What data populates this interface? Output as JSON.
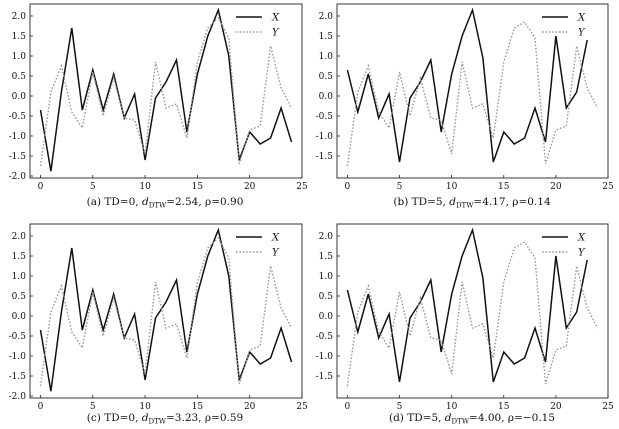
{
  "figure": {
    "panels": [
      {
        "caption_pre": "(a) TD=0, ",
        "caption_d": "d",
        "caption_sub": "DTW",
        "caption_post": "=2.54, ρ=0.90"
      },
      {
        "caption_pre": "(b) TD=5, ",
        "caption_d": "d",
        "caption_sub": "DTW",
        "caption_post": "=4.17, ρ=0.14"
      },
      {
        "caption_pre": "(c) TD=0, ",
        "caption_d": "d",
        "caption_sub": "DTW",
        "caption_post": "=3.23, ρ=0.59"
      },
      {
        "caption_pre": "(d) TD=5, ",
        "caption_d": "d",
        "caption_sub": "DTW",
        "caption_post": "=4.00, ρ=−0.15"
      }
    ]
  },
  "chart_data": [
    {
      "type": "line",
      "title": "",
      "xlabel": "",
      "ylabel": "",
      "xlim": [
        -1,
        25
      ],
      "ylim": [
        -2.05,
        2.3
      ],
      "xticks": [
        "0",
        "5",
        "10",
        "15",
        "20",
        "25"
      ],
      "yticks": [
        "2.0",
        "1.5",
        "1.0",
        "0.5",
        "0.0",
        "-0.5",
        "-1.0",
        "-1.5",
        "-2.0"
      ],
      "legend_position": "top-right",
      "x": [
        0,
        1,
        2,
        3,
        4,
        5,
        6,
        7,
        8,
        9,
        10,
        11,
        12,
        13,
        14,
        15,
        16,
        17,
        18,
        19,
        20,
        21,
        22,
        23,
        24
      ],
      "series": [
        {
          "name": "X",
          "style": "solid",
          "color": "#111111",
          "values": [
            -0.35,
            -1.88,
            0.1,
            1.7,
            -0.35,
            0.65,
            -0.35,
            0.55,
            -0.55,
            0.05,
            -1.6,
            -0.05,
            0.35,
            0.9,
            -0.9,
            0.55,
            1.5,
            2.15,
            1.0,
            -1.6,
            -0.9,
            -1.2,
            -1.05,
            -0.3,
            -1.15
          ]
        },
        {
          "name": "Y",
          "style": "dotted",
          "color": "#999999",
          "values": [
            -1.75,
            0.1,
            0.75,
            -0.4,
            -0.8,
            0.6,
            -0.5,
            0.45,
            -0.55,
            -0.6,
            -1.45,
            0.85,
            -0.3,
            -0.2,
            -1.05,
            0.85,
            1.7,
            1.95,
            1.45,
            -1.7,
            -0.85,
            -0.75,
            1.25,
            0.2,
            -0.3
          ]
        }
      ]
    },
    {
      "type": "line",
      "title": "",
      "xlabel": "",
      "ylabel": "",
      "xlim": [
        -1,
        25
      ],
      "ylim": [
        -2.05,
        2.3
      ],
      "xticks": [
        "0",
        "5",
        "10",
        "15",
        "20",
        "25"
      ],
      "yticks": [
        "2.0",
        "1.5",
        "1.0",
        "0.5",
        "0.0",
        "-0.5",
        "-1.0",
        "-1.5"
      ],
      "legend_position": "top-right",
      "x": [
        0,
        1,
        2,
        3,
        4,
        5,
        6,
        7,
        8,
        9,
        10,
        11,
        12,
        13,
        14,
        15,
        16,
        17,
        18,
        19,
        20,
        21,
        22,
        23,
        24
      ],
      "series": [
        {
          "name": "X",
          "style": "solid",
          "color": "#111111",
          "values": [
            0.65,
            -0.4,
            0.55,
            -0.55,
            0.05,
            -1.65,
            -0.05,
            0.35,
            0.9,
            -0.9,
            0.55,
            1.5,
            2.15,
            0.95,
            -1.65,
            -0.9,
            -1.2,
            -1.05,
            -0.3,
            -1.15,
            1.5,
            -0.3,
            0.1,
            1.4,
            null
          ]
        },
        {
          "name": "Y",
          "style": "dotted",
          "color": "#999999",
          "values": [
            -1.75,
            0.1,
            0.75,
            -0.4,
            -0.8,
            0.6,
            -0.5,
            0.45,
            -0.55,
            -0.6,
            -1.45,
            0.85,
            -0.3,
            -0.2,
            -1.05,
            0.85,
            1.7,
            1.85,
            1.45,
            -1.7,
            -0.85,
            -0.75,
            1.25,
            0.2,
            -0.3
          ]
        }
      ]
    },
    {
      "type": "line",
      "title": "",
      "xlabel": "",
      "ylabel": "",
      "xlim": [
        -1,
        25
      ],
      "ylim": [
        -2.05,
        2.3
      ],
      "xticks": [
        "0",
        "5",
        "10",
        "15",
        "20",
        "25"
      ],
      "yticks": [
        "2.0",
        "1.5",
        "1.0",
        "0.5",
        "0.0",
        "-0.5",
        "-1.0",
        "-1.5",
        "-2.0"
      ],
      "legend_position": "top-right",
      "x": [
        0,
        1,
        2,
        3,
        4,
        5,
        6,
        7,
        8,
        9,
        10,
        11,
        12,
        13,
        14,
        15,
        16,
        17,
        18,
        19,
        20,
        21,
        22,
        23,
        24
      ],
      "series": [
        {
          "name": "X",
          "style": "solid",
          "color": "#111111",
          "values": [
            -0.35,
            -1.88,
            0.1,
            1.7,
            -0.35,
            0.65,
            -0.35,
            0.55,
            -0.55,
            0.05,
            -1.6,
            -0.05,
            0.35,
            0.9,
            -0.9,
            0.55,
            1.5,
            2.15,
            1.0,
            -1.6,
            -0.9,
            -1.2,
            -1.05,
            -0.3,
            -1.15
          ]
        },
        {
          "name": "Y",
          "style": "dotted",
          "color": "#999999",
          "values": [
            -1.75,
            0.1,
            0.75,
            -0.4,
            -0.8,
            0.6,
            -0.5,
            0.45,
            -0.55,
            -0.6,
            -1.45,
            0.85,
            -0.3,
            -0.2,
            -1.05,
            0.85,
            1.7,
            1.95,
            1.45,
            -1.7,
            -0.85,
            -0.75,
            1.25,
            0.2,
            -0.3
          ]
        }
      ]
    },
    {
      "type": "line",
      "title": "",
      "xlabel": "",
      "ylabel": "",
      "xlim": [
        -1,
        25
      ],
      "ylim": [
        -2.05,
        2.3
      ],
      "xticks": [
        "0",
        "5",
        "10",
        "15",
        "20",
        "25"
      ],
      "yticks": [
        "2.0",
        "1.5",
        "1.0",
        "0.5",
        "0.0",
        "-0.5",
        "-1.0",
        "-1.5"
      ],
      "legend_position": "top-right",
      "x": [
        0,
        1,
        2,
        3,
        4,
        5,
        6,
        7,
        8,
        9,
        10,
        11,
        12,
        13,
        14,
        15,
        16,
        17,
        18,
        19,
        20,
        21,
        22,
        23,
        24
      ],
      "series": [
        {
          "name": "X",
          "style": "solid",
          "color": "#111111",
          "values": [
            0.65,
            -0.4,
            0.55,
            -0.55,
            0.05,
            -1.65,
            -0.05,
            0.35,
            0.9,
            -0.9,
            0.55,
            1.5,
            2.15,
            0.95,
            -1.65,
            -0.9,
            -1.2,
            -1.05,
            -0.3,
            -1.15,
            1.5,
            -0.3,
            0.1,
            1.4,
            null
          ]
        },
        {
          "name": "Y",
          "style": "dotted",
          "color": "#999999",
          "values": [
            -1.75,
            0.1,
            0.75,
            -0.4,
            -0.8,
            0.6,
            -0.5,
            0.45,
            -0.55,
            -0.6,
            -1.45,
            0.85,
            -0.3,
            -0.2,
            -1.05,
            0.85,
            1.7,
            1.85,
            1.45,
            -1.7,
            -0.85,
            -0.75,
            1.25,
            0.2,
            -0.3
          ]
        }
      ]
    }
  ]
}
